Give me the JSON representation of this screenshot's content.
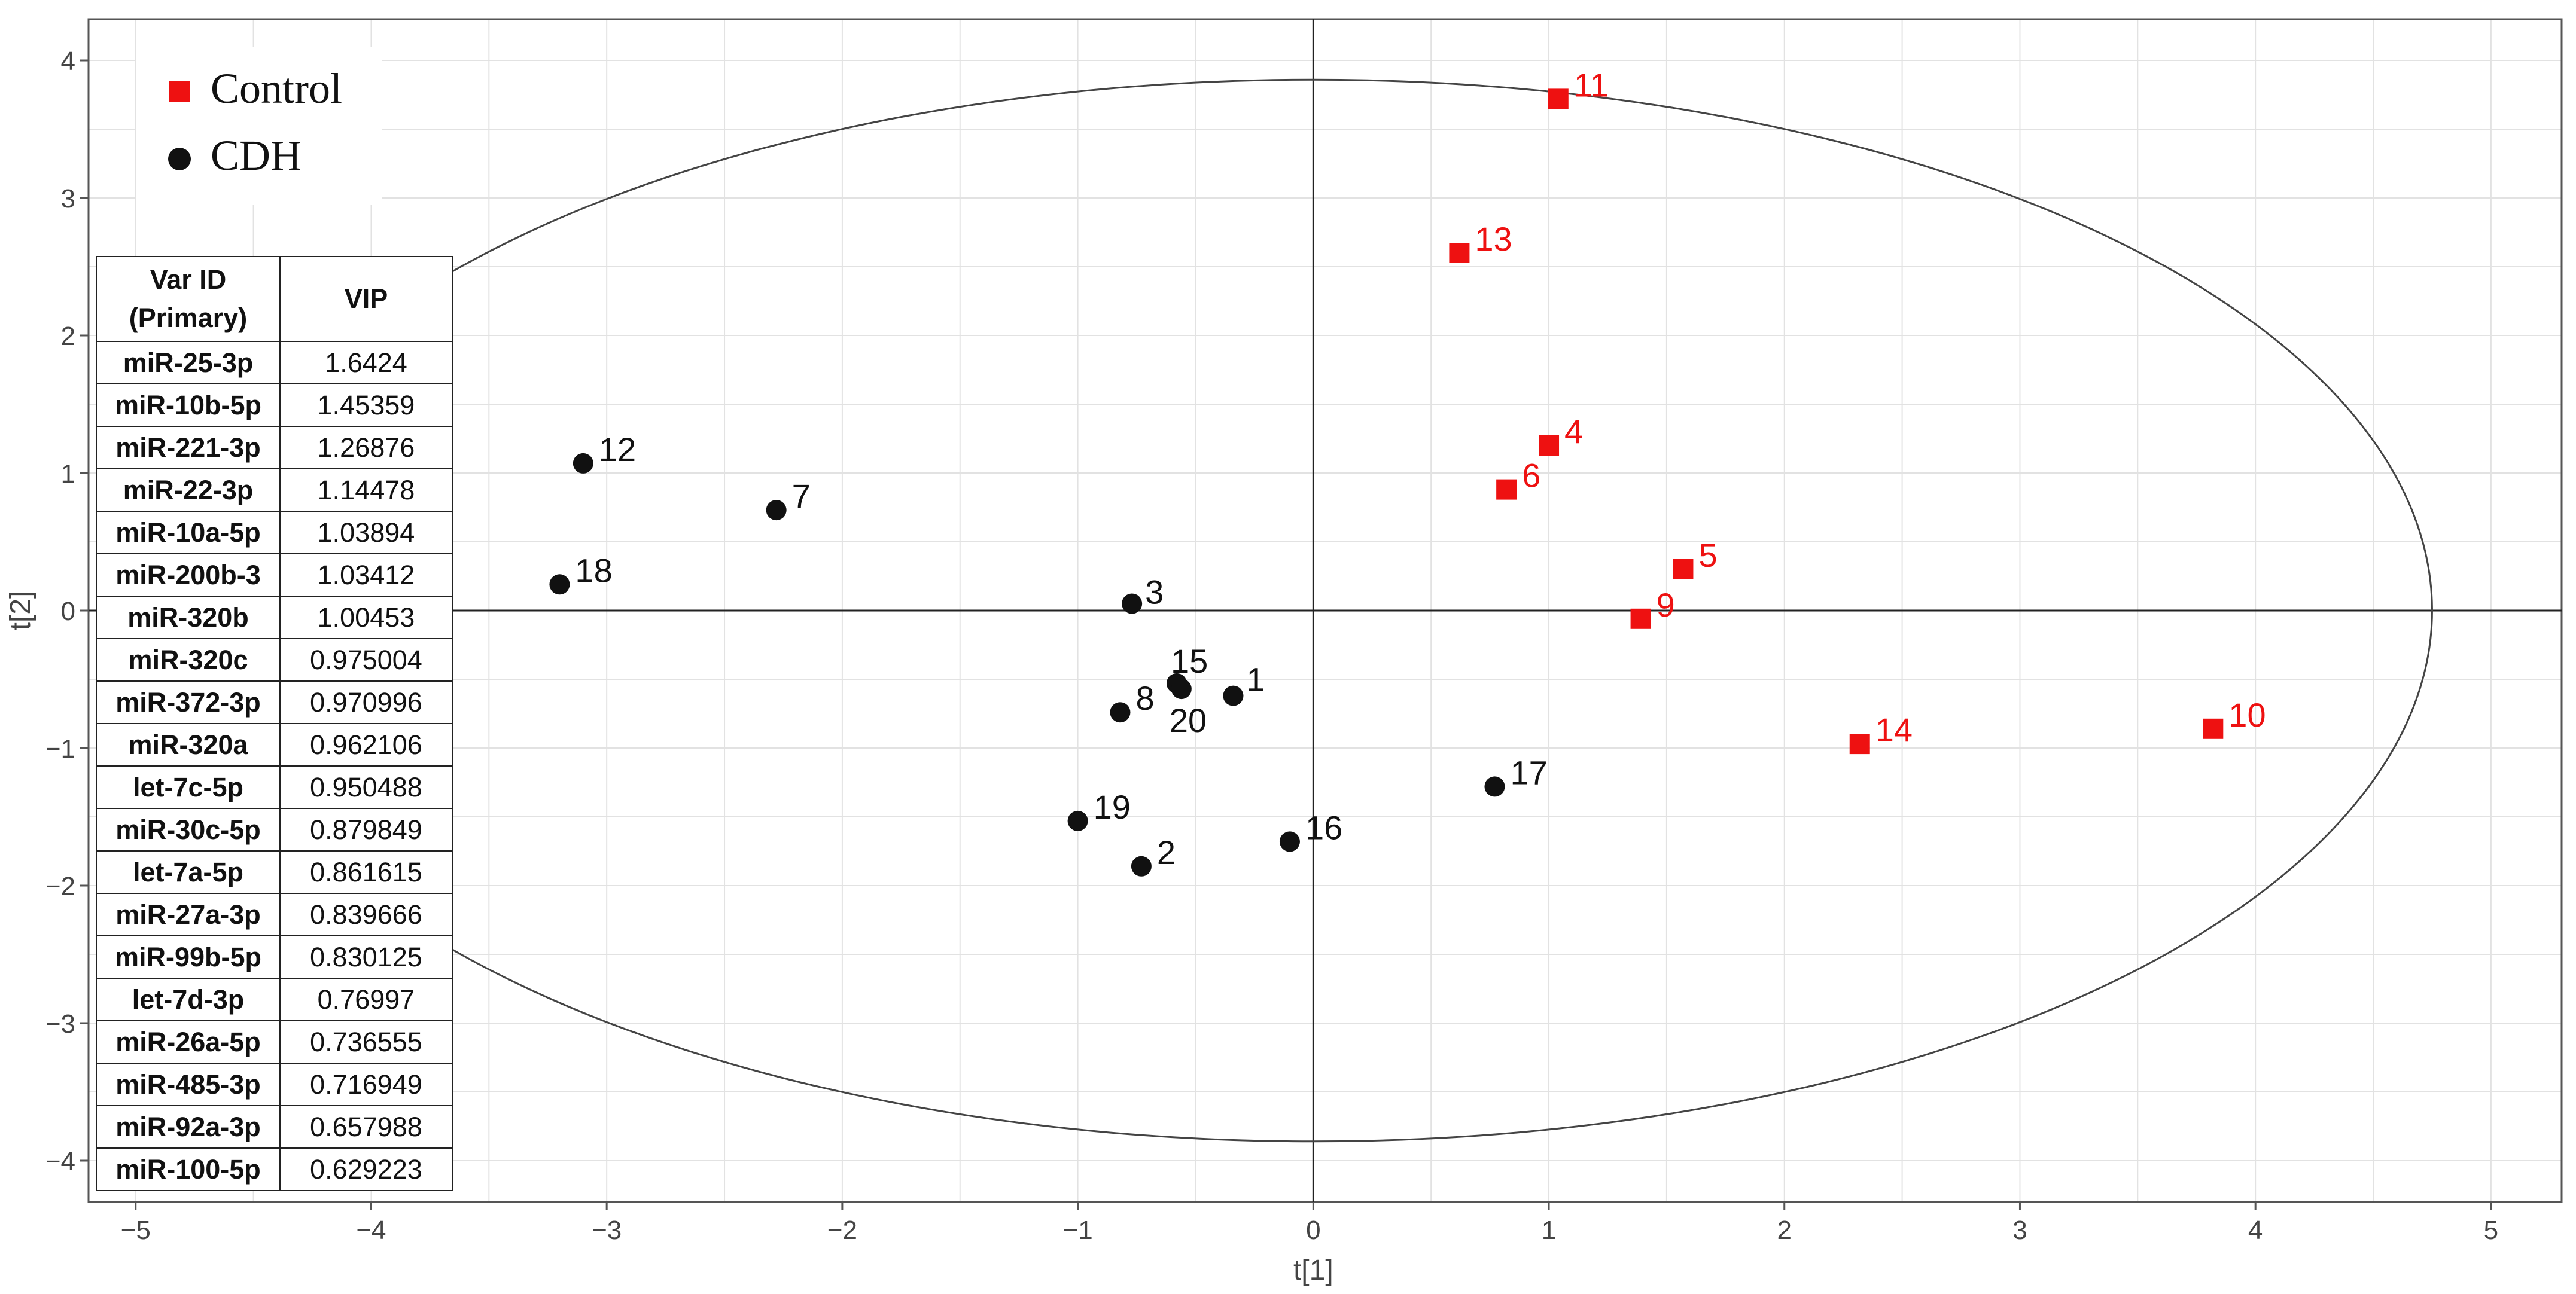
{
  "chart_data": {
    "type": "scatter",
    "xlabel": "t[1]",
    "ylabel": "t[2]",
    "xlim": [
      -5.2,
      5.3
    ],
    "ylim": [
      -4.3,
      4.3
    ],
    "xticks": [
      -5,
      -4,
      -3,
      -2,
      -1,
      0,
      1,
      2,
      3,
      4,
      5
    ],
    "yticks": [
      -4,
      -3,
      -2,
      -1,
      0,
      1,
      2,
      3,
      4
    ],
    "grid": true,
    "ellipse": {
      "cx": 0,
      "cy": 0,
      "rx": 4.75,
      "ry": 3.86
    },
    "legend_position": "top-left",
    "series": [
      {
        "name": "Control",
        "marker": "square",
        "color": "#ee1111",
        "points": [
          {
            "label": "11",
            "x": 1.04,
            "y": 3.72
          },
          {
            "label": "13",
            "x": 0.62,
            "y": 2.6
          },
          {
            "label": "4",
            "x": 1.0,
            "y": 1.2
          },
          {
            "label": "6",
            "x": 0.82,
            "y": 0.88
          },
          {
            "label": "5",
            "x": 1.57,
            "y": 0.3
          },
          {
            "label": "9",
            "x": 1.39,
            "y": -0.06
          },
          {
            "label": "14",
            "x": 2.32,
            "y": -0.97
          },
          {
            "label": "10",
            "x": 3.82,
            "y": -0.86
          }
        ]
      },
      {
        "name": "CDH",
        "marker": "circle",
        "color": "#111111",
        "points": [
          {
            "label": "12",
            "x": -3.1,
            "y": 1.07
          },
          {
            "label": "7",
            "x": -2.28,
            "y": 0.73
          },
          {
            "label": "18",
            "x": -3.2,
            "y": 0.19
          },
          {
            "label": "3",
            "x": -0.77,
            "y": 0.05
          },
          {
            "label": "15",
            "x": -0.58,
            "y": -0.53
          },
          {
            "label": "20",
            "x": -0.56,
            "y": -0.57
          },
          {
            "label": "1",
            "x": -0.34,
            "y": -0.62
          },
          {
            "label": "8",
            "x": -0.82,
            "y": -0.74
          },
          {
            "label": "17",
            "x": 0.77,
            "y": -1.28
          },
          {
            "label": "19",
            "x": -1.0,
            "y": -1.53
          },
          {
            "label": "16",
            "x": -0.1,
            "y": -1.68
          },
          {
            "label": "2",
            "x": -0.73,
            "y": -1.86
          }
        ]
      }
    ],
    "table": {
      "headers": [
        "Var ID (Primary)",
        "VIP"
      ],
      "rows": [
        [
          "miR-25-3p",
          "1.6424"
        ],
        [
          "miR-10b-5p",
          "1.45359"
        ],
        [
          "miR-221-3p",
          "1.26876"
        ],
        [
          "miR-22-3p",
          "1.14478"
        ],
        [
          "miR-10a-5p",
          "1.03894"
        ],
        [
          "miR-200b-3",
          "1.03412"
        ],
        [
          "miR-320b",
          "1.00453"
        ],
        [
          "miR-320c",
          "0.975004"
        ],
        [
          "miR-372-3p",
          "0.970996"
        ],
        [
          "miR-320a",
          "0.962106"
        ],
        [
          "let-7c-5p",
          "0.950488"
        ],
        [
          "miR-30c-5p",
          "0.879849"
        ],
        [
          "let-7a-5p",
          "0.861615"
        ],
        [
          "miR-27a-3p",
          "0.839666"
        ],
        [
          "miR-99b-5p",
          "0.830125"
        ],
        [
          "let-7d-3p",
          "0.76997"
        ],
        [
          "miR-26a-5p",
          "0.736555"
        ],
        [
          "miR-485-3p",
          "0.716949"
        ],
        [
          "miR-92a-3p",
          "0.657988"
        ],
        [
          "miR-100-5p",
          "0.629223"
        ]
      ]
    }
  }
}
